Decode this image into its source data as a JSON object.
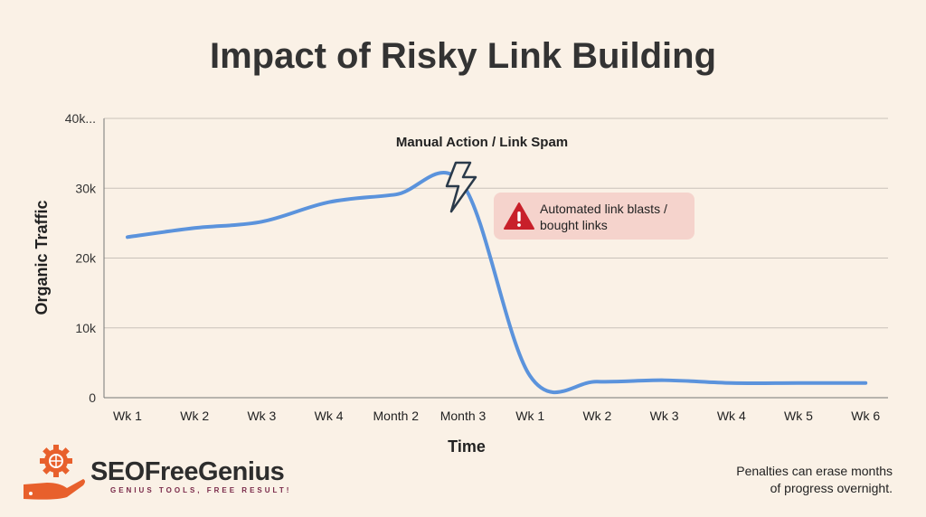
{
  "title": "Impact of Risky Link Building",
  "chart_data": {
    "type": "line",
    "title": "Impact of Risky Link Building",
    "xlabel": "Time",
    "ylabel": "Organic Traffic",
    "categories": [
      "Wk 1",
      "Wk 2",
      "Wk 3",
      "Wk 4",
      "Month 2",
      "Month 3",
      "Wk 1",
      "Wk 2",
      "Wk 3",
      "Wk 4",
      "Wk 5",
      "Wk 6"
    ],
    "values": [
      23000,
      24300,
      25200,
      28000,
      29100,
      30500,
      3100,
      2300,
      2500,
      2100,
      2100,
      2100
    ],
    "ylim": [
      0,
      40000
    ],
    "yticks": [
      0,
      10000,
      20000,
      30000,
      40000
    ],
    "ytick_labels": [
      "0",
      "10k",
      "20k",
      "30k",
      "40k..."
    ],
    "grid": true,
    "line_color": "#5b93dc",
    "annotations": {
      "event_label": "Manual Action / Link Spam",
      "event_icon": "lightning-icon",
      "callout_text": "Automated link blasts / bought links",
      "callout_icon": "warning-icon",
      "callout_color": "#f5d3cc",
      "warning_color": "#c8202a"
    }
  },
  "footnote_line1": "Penalties can erase months",
  "footnote_line2": "of progress overnight.",
  "logo": {
    "brand": "SEOFreeGenius",
    "tagline": "GENIUS TOOLS, FREE RESULT!",
    "color": "#e8602c"
  }
}
